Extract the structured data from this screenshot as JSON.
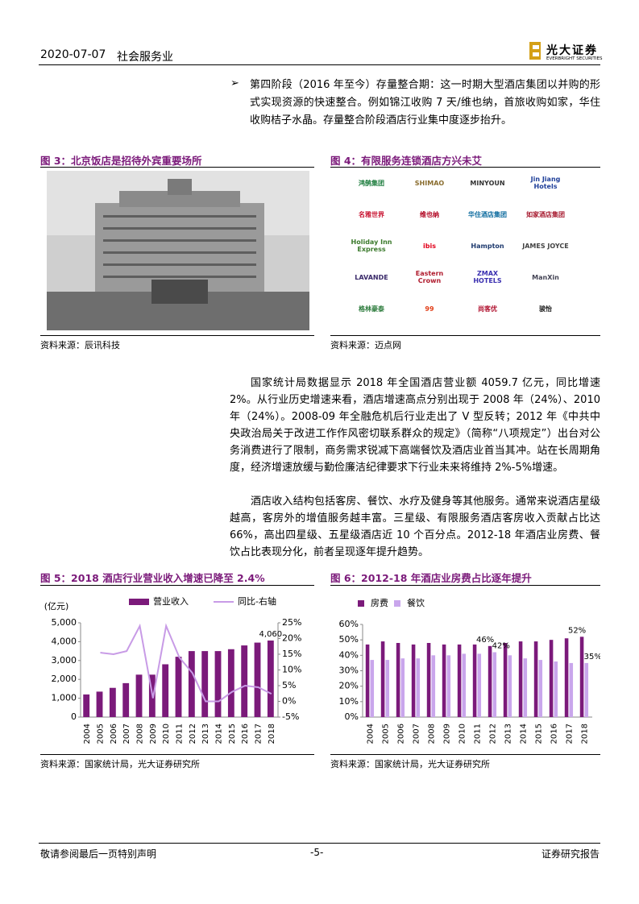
{
  "header": {
    "date": "2020-07-07",
    "industry": "社会服务业",
    "logo": "光大证券",
    "logo_en": "EVERBRIGHT SECURITIES"
  },
  "bullet": "第四阶段（2016 年至今）存量整合期：这一时期大型酒店集团以并购的形式实现资源的快速整合。例如锦江收购 7 天/维也纳，首旅收购如家，华住收购桔子水晶。存量整合阶段酒店行业集中度逐步抬升。",
  "figures": [
    {
      "title": "图 3：北京饭店是招待外宾重要场所",
      "source": "资料来源：辰讯科技"
    },
    {
      "title": "图 4：有限服务连锁酒店方兴未艾",
      "source": "资料来源：迈点网",
      "logos": [
        "鸿鹄集团",
        "SHIMAO",
        "MINYOUN",
        "Jin Jiang Hotels",
        "名雅世界",
        "维也纳",
        "华住酒店集团",
        "如家酒店集团",
        "Holiday Inn Express",
        "ibis",
        "Hampton",
        "JAMES JOYCE",
        "LAVANDE",
        "Eastern Crown",
        "ZMAX HOTELS",
        "ManXin",
        "格林豪泰",
        "99",
        "尚客优",
        "骏怡"
      ]
    }
  ],
  "paragraphs": [
    "国家统计局数据显示 2018 年全国酒店营业额 4059.7 亿元，同比增速2%。从行业历史增速来看，酒店增速高点分别出现于 2008 年（24%）、2010年（24%）。2008-09 年全融危机后行业走出了 V 型反转；2012 年《中共中央政治局关于改进工作作风密切联系群众的规定》（简称“八项规定”）出台对公务消费进行了限制，商务需求锐减下高端餐饮及酒店业首当其冲。站在长周期角度，经济增速放缓与勤俭廉洁纪律要求下行业未来将维持 2%-5%增速。",
    "酒店收入结构包括客房、餐饮、水疗及健身等其他服务。通常来说酒店星级越高，客房外的增值服务越丰富。三星级、有限服务酒店客房收入贡献占比达 66%，高出四星级、五星级酒店近 10 个百分点。2012-18 年酒店业房费、餐饮占比表现分化，前者呈现逐年提升趋势。"
  ],
  "chart_data": [
    {
      "type": "bar",
      "title": "图 5：2018 酒店行业营业收入增速已降至 2.4%",
      "source": "资料来源：国家统计局，光大证券研究所",
      "y_label": "(亿元)",
      "categories": [
        "2004",
        "2005",
        "2006",
        "2007",
        "2008",
        "2009",
        "2010",
        "2011",
        "2012",
        "2013",
        "2014",
        "2015",
        "2016",
        "2017",
        "2018"
      ],
      "series": [
        {
          "name": "营业收入",
          "color": "#7b1a7a",
          "values": [
            1200,
            1350,
            1550,
            1800,
            2250,
            2250,
            2800,
            3200,
            3500,
            3500,
            3500,
            3600,
            3800,
            3950,
            4060
          ],
          "value_labels": [
            null,
            null,
            null,
            null,
            null,
            null,
            null,
            null,
            null,
            null,
            null,
            null,
            null,
            null,
            "4,060"
          ]
        },
        {
          "name": "同比-右轴",
          "color": "#c89be6",
          "type": "line",
          "axis": "y2",
          "values": [
            null,
            15.5,
            15,
            16,
            24,
            1,
            24,
            14,
            9,
            0,
            0,
            3,
            5,
            4.5,
            2.4
          ]
        }
      ],
      "ylim": [
        0,
        5000
      ],
      "yticks": [
        0,
        {
          "value": 1000,
          "label": "1,000"
        },
        {
          "value": 2000,
          "label": "2,000"
        },
        {
          "value": 3000,
          "label": "3,000"
        },
        {
          "value": 4000,
          "label": "4,000"
        },
        {
          "value": 5000,
          "label": "5,000"
        }
      ],
      "y2lim": [
        -5,
        25
      ],
      "y2ticks": [
        {
          "value": -5,
          "label": "-5%"
        },
        {
          "value": 0,
          "label": "0%"
        },
        {
          "value": 5,
          "label": "5%"
        },
        {
          "value": 10,
          "label": "10%"
        },
        {
          "value": 15,
          "label": "15%"
        },
        {
          "value": 20,
          "label": "20%"
        },
        {
          "value": 25,
          "label": "25%"
        }
      ],
      "grid": false
    },
    {
      "type": "bar",
      "title": "图 6：2012-18 年酒店业房费占比逐年提升",
      "source": "资料来源：国家统计局，光大证券研究所",
      "categories": [
        "2004",
        "2005",
        "2006",
        "2007",
        "2008",
        "2009",
        "2010",
        "2011",
        "2012",
        "2013",
        "2014",
        "2015",
        "2016",
        "2017",
        "2018"
      ],
      "series": [
        {
          "name": "房费",
          "color": "#7b1a7a",
          "values": [
            47,
            49,
            48,
            47,
            48,
            47,
            47,
            47,
            46,
            48,
            49,
            49,
            50,
            51,
            52
          ],
          "value_labels": [
            null,
            null,
            null,
            null,
            null,
            null,
            null,
            null,
            "46%",
            null,
            null,
            null,
            null,
            null,
            "52%"
          ]
        },
        {
          "name": "餐饮",
          "color": "#c9a6ec",
          "values": [
            37,
            37,
            38,
            38,
            40,
            40,
            41,
            41,
            42,
            40,
            38,
            37,
            36,
            35,
            35
          ],
          "value_labels": [
            null,
            null,
            null,
            null,
            null,
            null,
            null,
            null,
            "42%",
            null,
            null,
            null,
            null,
            null,
            "35%"
          ]
        }
      ],
      "ylim": [
        0,
        60
      ],
      "yticks": [
        {
          "value": 0,
          "label": "0%"
        },
        {
          "value": 10,
          "label": "10%"
        },
        {
          "value": 20,
          "label": "20%"
        },
        {
          "value": 30,
          "label": "30%"
        },
        {
          "value": 40,
          "label": "40%"
        },
        {
          "value": 50,
          "label": "50%"
        },
        {
          "value": 60,
          "label": "60%"
        }
      ],
      "grid": false
    }
  ],
  "footer": {
    "left": "敬请参阅最后一页特别声明",
    "page": "-5-",
    "right": "证券研究报告"
  }
}
